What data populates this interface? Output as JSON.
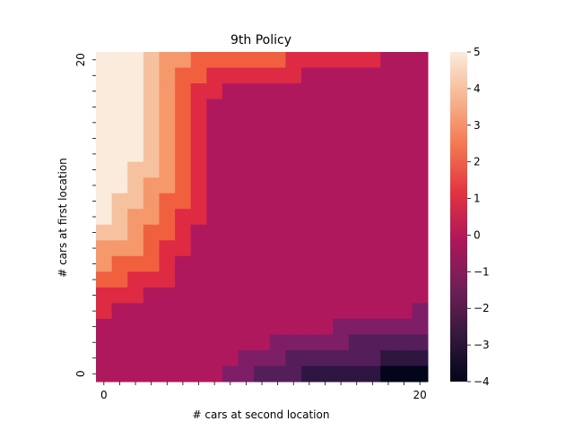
{
  "chart_data": {
    "type": "heatmap",
    "title": "9th Policy",
    "xlabel": "# cars at second location",
    "ylabel": "# cars at first location",
    "x_tick_labels": [
      {
        "index": 0,
        "label": "0"
      },
      {
        "index": 20,
        "label": "20"
      }
    ],
    "y_tick_labels": [
      {
        "index": 0,
        "label": "0"
      },
      {
        "index": 20,
        "label": "20"
      }
    ],
    "y_axis_order": "first location 20 at top, 0 at bottom",
    "vmin": -4,
    "vmax": 5,
    "colorbar_ticks": [
      "5",
      "4",
      "3",
      "2",
      "1",
      "0",
      "−1",
      "−2",
      "−3",
      "−4"
    ],
    "colormap": "rocket",
    "matrix_rows_top_to_bottom_first_location_20_to_0": [
      [
        5,
        5,
        5,
        4,
        3,
        3,
        2,
        2,
        2,
        2,
        2,
        2,
        1,
        1,
        1,
        1,
        1,
        1,
        0,
        0,
        0
      ],
      [
        5,
        5,
        5,
        4,
        3,
        2,
        2,
        1,
        1,
        1,
        1,
        1,
        1,
        0,
        0,
        0,
        0,
        0,
        0,
        0,
        0
      ],
      [
        5,
        5,
        5,
        4,
        3,
        2,
        1,
        1,
        0,
        0,
        0,
        0,
        0,
        0,
        0,
        0,
        0,
        0,
        0,
        0,
        0
      ],
      [
        5,
        5,
        5,
        4,
        3,
        2,
        1,
        0,
        0,
        0,
        0,
        0,
        0,
        0,
        0,
        0,
        0,
        0,
        0,
        0,
        0
      ],
      [
        5,
        5,
        5,
        4,
        3,
        2,
        1,
        0,
        0,
        0,
        0,
        0,
        0,
        0,
        0,
        0,
        0,
        0,
        0,
        0,
        0
      ],
      [
        5,
        5,
        5,
        4,
        3,
        2,
        1,
        0,
        0,
        0,
        0,
        0,
        0,
        0,
        0,
        0,
        0,
        0,
        0,
        0,
        0
      ],
      [
        5,
        5,
        5,
        4,
        3,
        2,
        1,
        0,
        0,
        0,
        0,
        0,
        0,
        0,
        0,
        0,
        0,
        0,
        0,
        0,
        0
      ],
      [
        5,
        5,
        4,
        4,
        3,
        2,
        1,
        0,
        0,
        0,
        0,
        0,
        0,
        0,
        0,
        0,
        0,
        0,
        0,
        0,
        0
      ],
      [
        5,
        5,
        4,
        3,
        3,
        2,
        1,
        0,
        0,
        0,
        0,
        0,
        0,
        0,
        0,
        0,
        0,
        0,
        0,
        0,
        0
      ],
      [
        5,
        4,
        4,
        3,
        2,
        2,
        1,
        0,
        0,
        0,
        0,
        0,
        0,
        0,
        0,
        0,
        0,
        0,
        0,
        0,
        0
      ],
      [
        5,
        4,
        3,
        3,
        2,
        1,
        1,
        0,
        0,
        0,
        0,
        0,
        0,
        0,
        0,
        0,
        0,
        0,
        0,
        0,
        0
      ],
      [
        4,
        4,
        3,
        2,
        2,
        1,
        0,
        0,
        0,
        0,
        0,
        0,
        0,
        0,
        0,
        0,
        0,
        0,
        0,
        0,
        0
      ],
      [
        3,
        3,
        3,
        2,
        1,
        1,
        0,
        0,
        0,
        0,
        0,
        0,
        0,
        0,
        0,
        0,
        0,
        0,
        0,
        0,
        0
      ],
      [
        3,
        2,
        2,
        2,
        1,
        0,
        0,
        0,
        0,
        0,
        0,
        0,
        0,
        0,
        0,
        0,
        0,
        0,
        0,
        0,
        0
      ],
      [
        2,
        2,
        1,
        1,
        1,
        0,
        0,
        0,
        0,
        0,
        0,
        0,
        0,
        0,
        0,
        0,
        0,
        0,
        0,
        0,
        0
      ],
      [
        1,
        1,
        1,
        0,
        0,
        0,
        0,
        0,
        0,
        0,
        0,
        0,
        0,
        0,
        0,
        0,
        0,
        0,
        0,
        0,
        0
      ],
      [
        1,
        0,
        0,
        0,
        0,
        0,
        0,
        0,
        0,
        0,
        0,
        0,
        0,
        0,
        0,
        0,
        0,
        0,
        0,
        0,
        -1
      ],
      [
        0,
        0,
        0,
        0,
        0,
        0,
        0,
        0,
        0,
        0,
        0,
        0,
        0,
        0,
        0,
        -1,
        -1,
        -1,
        -1,
        -1,
        -1
      ],
      [
        0,
        0,
        0,
        0,
        0,
        0,
        0,
        0,
        0,
        0,
        0,
        -1,
        -1,
        -1,
        -1,
        -1,
        -2,
        -2,
        -2,
        -2,
        -2
      ],
      [
        0,
        0,
        0,
        0,
        0,
        0,
        0,
        0,
        0,
        -1,
        -1,
        -1,
        -2,
        -2,
        -2,
        -2,
        -2,
        -2,
        -3,
        -3,
        -3
      ],
      [
        0,
        0,
        0,
        0,
        0,
        0,
        0,
        0,
        -1,
        -1,
        -2,
        -2,
        -2,
        -3,
        -3,
        -3,
        -3,
        -3,
        -4,
        -4,
        -4
      ]
    ],
    "value_colors": {
      "5": "#faebdd",
      "4": "#f6c19f",
      "3": "#f5986b",
      "2": "#f0603f",
      "1": "#de2a42",
      "0": "#b0185e",
      "-1": "#7d1e66",
      "-2": "#541e5b",
      "-3": "#2e1641",
      "-4": "#03051a"
    },
    "colorbar_gradient_stops": [
      "#03051a",
      "#35193e",
      "#701f57",
      "#ad1759",
      "#e13342",
      "#f37651",
      "#f6b48f",
      "#faebdd"
    ],
    "grid": false,
    "legend": "colorbar on right"
  }
}
